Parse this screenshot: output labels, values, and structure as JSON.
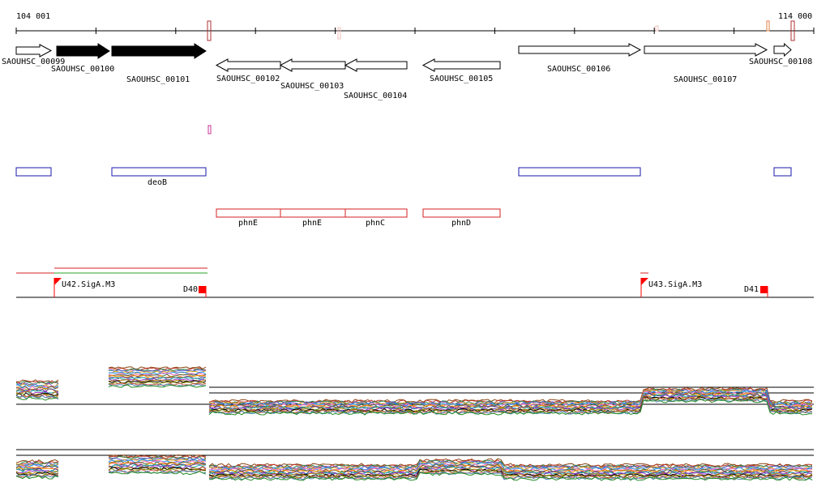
{
  "ruler": {
    "start_label": "104 001",
    "end_label": "114 000"
  },
  "genes": [
    {
      "label": "SAOUHSC_00099",
      "strand": "+",
      "filled": false
    },
    {
      "label": "SAOUHSC_00100",
      "strand": "+",
      "filled": true
    },
    {
      "label": "SAOUHSC_00101",
      "strand": "+",
      "filled": true
    },
    {
      "label": "SAOUHSC_00102",
      "strand": "-",
      "filled": false
    },
    {
      "label": "SAOUHSC_00103",
      "strand": "-",
      "filled": false
    },
    {
      "label": "SAOUHSC_00104",
      "strand": "-",
      "filled": false
    },
    {
      "label": "SAOUHSC_00105",
      "strand": "-",
      "filled": false
    },
    {
      "label": "SAOUHSC_00106",
      "strand": "+",
      "filled": false
    },
    {
      "label": "SAOUHSC_00107",
      "strand": "+",
      "filled": false
    },
    {
      "label": "SAOUHSC_00108",
      "strand": "+",
      "filled": false
    }
  ],
  "operons_blue": [
    {
      "label": ""
    },
    {
      "label": "deoB"
    },
    {
      "label": ""
    },
    {
      "label": ""
    }
  ],
  "operons_red": [
    {
      "label": "phnE"
    },
    {
      "label": "phnE"
    },
    {
      "label": "phnC"
    },
    {
      "label": "phnD"
    }
  ],
  "promoters": [
    {
      "label": "U42.SigA.M3"
    },
    {
      "label": "U43.SigA.M3"
    }
  ],
  "terminators": [
    {
      "label": "D40"
    },
    {
      "label": "D41"
    }
  ],
  "colors": {
    "gene_outline": "#000000",
    "operon_blue": "#1a1aa8",
    "operon_red": "#d42020",
    "promoter_flag": "#ff0000",
    "marker_pink": "#cc3399",
    "marker_brown": "#b03030"
  }
}
